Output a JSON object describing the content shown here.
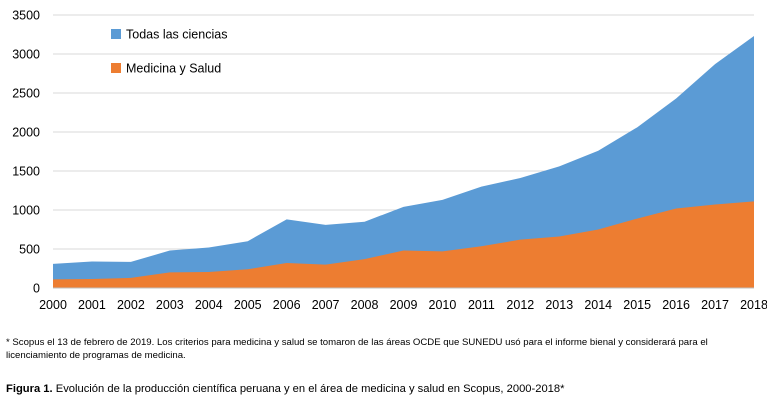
{
  "chart_data": {
    "type": "area",
    "x": [
      "2000",
      "2001",
      "2002",
      "2003",
      "2004",
      "2005",
      "2006",
      "2007",
      "2008",
      "2009",
      "2010",
      "2011",
      "2012",
      "2013",
      "2014",
      "2015",
      "2016",
      "2017",
      "2018"
    ],
    "series": [
      {
        "name": "Todas las ciencias",
        "color": "#5B9BD5",
        "values": [
          310,
          340,
          335,
          480,
          520,
          600,
          880,
          810,
          850,
          1040,
          1130,
          1300,
          1410,
          1560,
          1760,
          2060,
          2430,
          2870,
          3230
        ]
      },
      {
        "name": "Medicina y Salud",
        "color": "#ED7D31",
        "values": [
          110,
          115,
          130,
          200,
          205,
          240,
          320,
          300,
          370,
          480,
          470,
          535,
          620,
          660,
          750,
          890,
          1020,
          1070,
          1110
        ]
      }
    ],
    "yticks": [
      0,
      500,
      1000,
      1500,
      2000,
      2500,
      3000,
      3500
    ],
    "ylim": [
      0,
      3500
    ],
    "grid": true,
    "legend_position": "top-left"
  },
  "footnote": "* Scopus el 13 de febrero de 2019. Los criterios para medicina y salud se tomaron de las áreas OCDE que SUNEDU usó para el informe bienal y considerará para el licenciamiento de programas de medicina.",
  "caption": {
    "label": "Figura 1.",
    "text": " Evolución de la producción científica peruana y en el área de medicina y salud en Scopus, 2000-2018*"
  }
}
